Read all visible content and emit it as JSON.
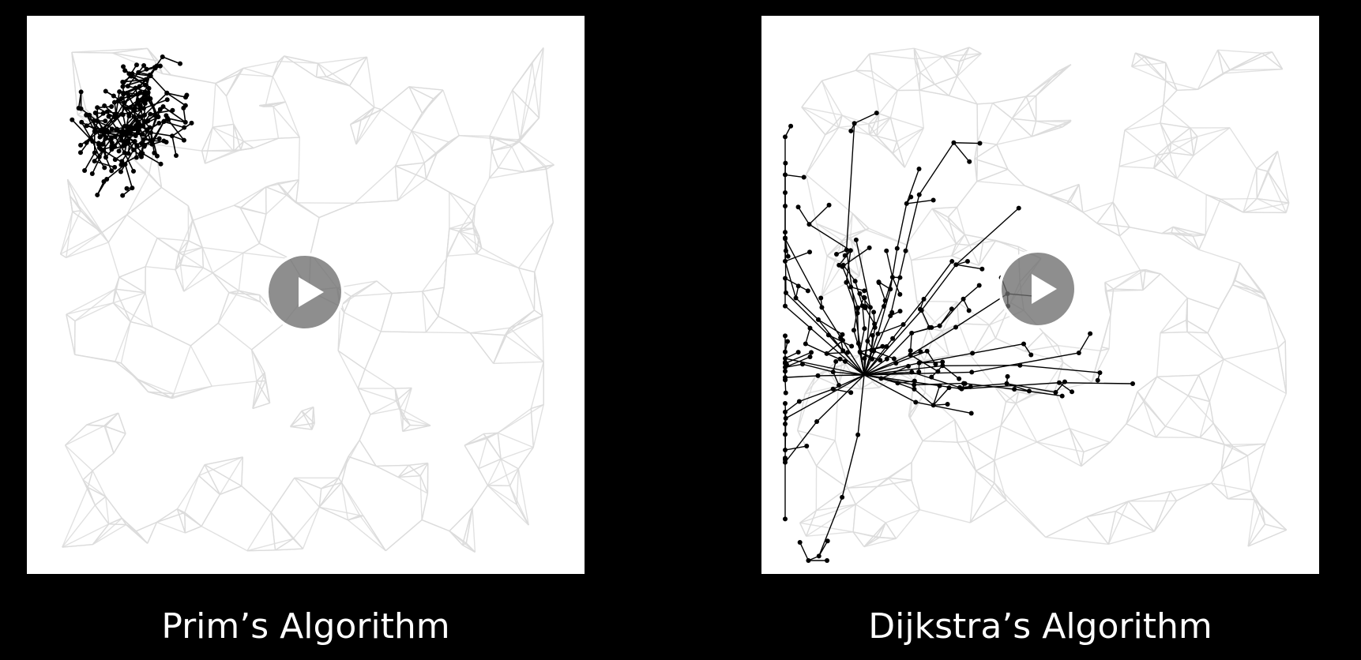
{
  "slides": [
    {
      "caption": "Prim’s Algorithm"
    },
    {
      "caption": "Dijkstra’s Algorithm"
    }
  ],
  "colors": {
    "background": "#000000",
    "panel": "#ffffff",
    "graph_edge": "#dcdcdc",
    "tree_edge": "#000000",
    "play_button": "#6e6e6e"
  },
  "icons": [
    "play-icon",
    "play-icon"
  ]
}
